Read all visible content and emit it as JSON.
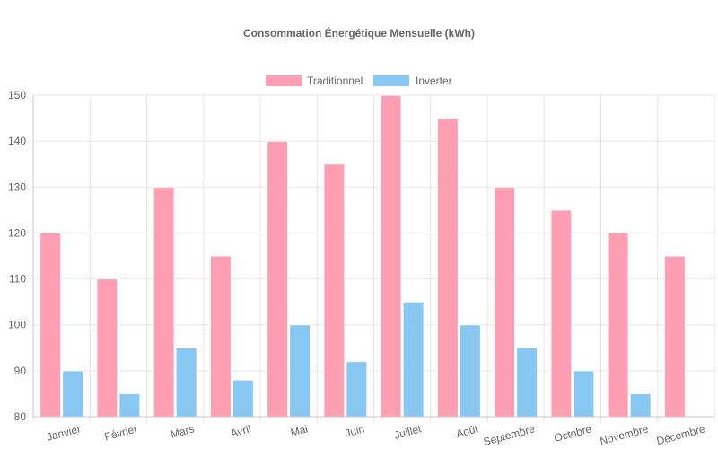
{
  "chart_data": {
    "type": "bar",
    "title": "Consommation Énergétique Mensuelle (kWh)",
    "xlabel": "",
    "ylabel": "",
    "ylim": [
      80,
      150
    ],
    "yticks": [
      80,
      90,
      100,
      110,
      120,
      130,
      140,
      150
    ],
    "grid": true,
    "legend_position": "top",
    "categories": [
      "Janvier",
      "Février",
      "Mars",
      "Avril",
      "Mai",
      "Juin",
      "Juillet",
      "Août",
      "Septembre",
      "Octobre",
      "Novembre",
      "Décembre"
    ],
    "series": [
      {
        "name": "Traditionnel",
        "color": "#ff9fb3",
        "values": [
          120,
          110,
          130,
          115,
          140,
          135,
          150,
          145,
          130,
          125,
          120,
          115
        ]
      },
      {
        "name": "Inverter",
        "color": "#88c7f2",
        "values": [
          90,
          85,
          95,
          88,
          100,
          92,
          105,
          100,
          95,
          90,
          85,
          80
        ]
      }
    ]
  }
}
